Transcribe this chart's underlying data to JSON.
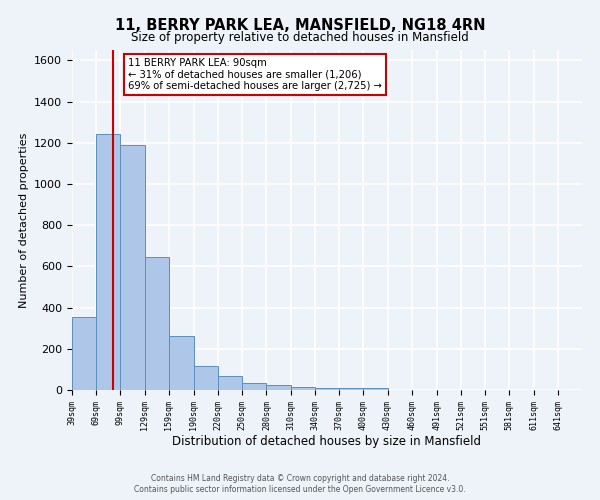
{
  "title": "11, BERRY PARK LEA, MANSFIELD, NG18 4RN",
  "subtitle": "Size of property relative to detached houses in Mansfield",
  "xlabel": "Distribution of detached houses by size in Mansfield",
  "ylabel": "Number of detached properties",
  "categories": [
    "39sqm",
    "69sqm",
    "99sqm",
    "129sqm",
    "159sqm",
    "190sqm",
    "220sqm",
    "250sqm",
    "280sqm",
    "310sqm",
    "340sqm",
    "370sqm",
    "400sqm",
    "430sqm",
    "460sqm",
    "491sqm",
    "521sqm",
    "551sqm",
    "581sqm",
    "611sqm",
    "641sqm"
  ],
  "values": [
    355,
    1240,
    1190,
    645,
    260,
    115,
    70,
    35,
    25,
    15,
    10,
    10,
    12,
    0,
    0,
    0,
    0,
    0,
    0,
    0,
    0
  ],
  "bar_color": "#aec6e8",
  "bar_edge_color": "#5a8fc0",
  "property_line_x": 90,
  "annotation_line1": "11 BERRY PARK LEA: 90sqm",
  "annotation_line2": "← 31% of detached houses are smaller (1,206)",
  "annotation_line3": "69% of semi-detached houses are larger (2,725) →",
  "annotation_box_color": "#cc0000",
  "ylim": [
    0,
    1650
  ],
  "yticks": [
    0,
    200,
    400,
    600,
    800,
    1000,
    1200,
    1400,
    1600
  ],
  "bin_starts": [
    39,
    69,
    99,
    129,
    159,
    190,
    220,
    250,
    280,
    310,
    340,
    370,
    400,
    430,
    460,
    491,
    521,
    551,
    581,
    611,
    641
  ],
  "footer1": "Contains HM Land Registry data © Crown copyright and database right 2024.",
  "footer2": "Contains public sector information licensed under the Open Government Licence v3.0.",
  "bg_color": "#eef2f9",
  "grid_color": "#ffffff"
}
